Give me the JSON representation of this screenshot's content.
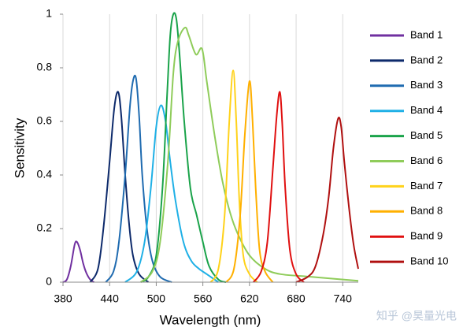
{
  "chart_data": {
    "type": "line",
    "x_label": "Wavelength (nm)",
    "y_label": "Sensitivity",
    "xlim": [
      380,
      760
    ],
    "ylim": [
      0,
      1
    ],
    "xticks": [
      380,
      440,
      500,
      560,
      620,
      680,
      740
    ],
    "yticks": [
      0,
      0.2,
      0.4,
      0.6,
      0.8,
      1
    ],
    "grid": "x",
    "legend": "right",
    "watermark": "知乎 @昊量光电",
    "series": [
      {
        "name": "Band 1",
        "color": "#7030a0",
        "x": [
          380,
          385,
          390,
          395,
          398,
          402,
          406,
          410,
          415,
          420
        ],
        "values": [
          0,
          0.01,
          0.06,
          0.14,
          0.15,
          0.12,
          0.07,
          0.035,
          0.01,
          0
        ]
      },
      {
        "name": "Band 2",
        "color": "#0d2a6b",
        "x": [
          415,
          425,
          432,
          440,
          446,
          451,
          455,
          460,
          465,
          470,
          478,
          490
        ],
        "values": [
          0,
          0.05,
          0.2,
          0.45,
          0.65,
          0.71,
          0.62,
          0.4,
          0.22,
          0.1,
          0.03,
          0
        ]
      },
      {
        "name": "Band 3",
        "color": "#1f6bb0",
        "x": [
          435,
          445,
          452,
          460,
          466,
          470,
          474,
          478,
          482,
          488,
          495,
          505,
          520
        ],
        "values": [
          0,
          0.04,
          0.15,
          0.4,
          0.65,
          0.75,
          0.76,
          0.62,
          0.4,
          0.2,
          0.08,
          0.02,
          0
        ]
      },
      {
        "name": "Band 4",
        "color": "#1fb0e6",
        "x": [
          460,
          475,
          485,
          493,
          500,
          506,
          512,
          518,
          525,
          535,
          545,
          555,
          565,
          580
        ],
        "values": [
          0,
          0.04,
          0.15,
          0.35,
          0.58,
          0.66,
          0.6,
          0.45,
          0.3,
          0.15,
          0.08,
          0.05,
          0.03,
          0
        ]
      },
      {
        "name": "Band 5",
        "color": "#1aa34a",
        "x": [
          480,
          490,
          500,
          508,
          514,
          518,
          522,
          526,
          530,
          536,
          544,
          552,
          560,
          568,
          580,
          590
        ],
        "values": [
          0,
          0.02,
          0.1,
          0.35,
          0.7,
          0.92,
          1.0,
          0.98,
          0.85,
          0.6,
          0.35,
          0.25,
          0.15,
          0.06,
          0.01,
          0
        ]
      },
      {
        "name": "Band 6",
        "color": "#8fcc5a",
        "x": [
          480,
          495,
          505,
          515,
          522,
          528,
          537,
          542,
          551,
          559,
          565,
          575,
          585,
          595,
          605,
          620,
          640,
          660,
          700,
          760
        ],
        "values": [
          0,
          0.04,
          0.15,
          0.45,
          0.78,
          0.9,
          0.95,
          0.92,
          0.85,
          0.87,
          0.75,
          0.55,
          0.38,
          0.26,
          0.18,
          0.1,
          0.05,
          0.03,
          0.02,
          0.005
        ]
      },
      {
        "name": "Band 7",
        "color": "#ffd21a",
        "x": [
          570,
          580,
          588,
          594,
          599,
          603,
          607,
          612,
          620,
          630
        ],
        "values": [
          0,
          0.05,
          0.25,
          0.6,
          0.79,
          0.6,
          0.3,
          0.1,
          0.03,
          0
        ]
      },
      {
        "name": "Band 8",
        "color": "#ffb000",
        "x": [
          590,
          600,
          608,
          614,
          620,
          624,
          628,
          633,
          640,
          650
        ],
        "values": [
          0,
          0.05,
          0.25,
          0.55,
          0.75,
          0.6,
          0.35,
          0.12,
          0.04,
          0
        ]
      },
      {
        "name": "Band 9",
        "color": "#e01010",
        "x": [
          625,
          635,
          643,
          650,
          655,
          659,
          662,
          666,
          672,
          680,
          690
        ],
        "values": [
          0,
          0.04,
          0.15,
          0.42,
          0.62,
          0.71,
          0.6,
          0.35,
          0.12,
          0.03,
          0
        ]
      },
      {
        "name": "Band 10",
        "color": "#b01010",
        "x": [
          680,
          695,
          705,
          715,
          722,
          728,
          734,
          738,
          742,
          748,
          754,
          760
        ],
        "values": [
          0,
          0.02,
          0.06,
          0.18,
          0.32,
          0.5,
          0.61,
          0.58,
          0.45,
          0.28,
          0.14,
          0.05
        ]
      }
    ]
  }
}
